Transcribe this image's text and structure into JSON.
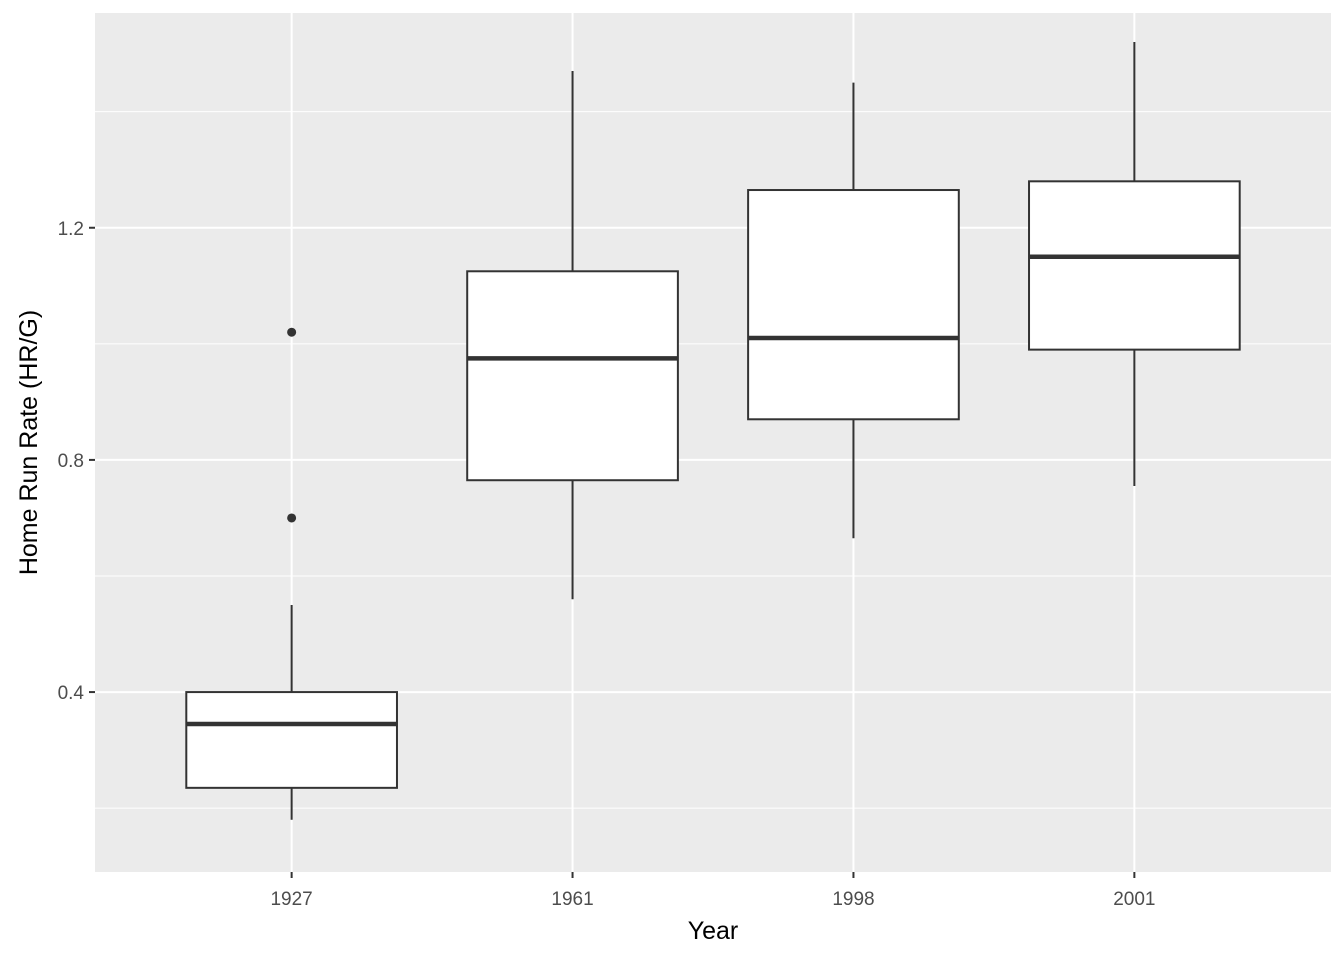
{
  "chart_data": {
    "type": "box",
    "title": "",
    "xlabel": "Year",
    "ylabel": "Home Run Rate (HR/G)",
    "ylim": [
      0.09,
      1.57
    ],
    "y_ticks": [
      0.4,
      0.8,
      1.2
    ],
    "y_tick_labels": [
      "0.4",
      "0.8",
      "1.2"
    ],
    "grid": true,
    "categories": [
      "1927",
      "1961",
      "1998",
      "2001"
    ],
    "boxes": [
      {
        "category": "1927",
        "whisker_low": 0.18,
        "q1": 0.235,
        "median": 0.345,
        "q3": 0.4,
        "whisker_high": 0.55,
        "outliers": [
          0.7,
          1.02
        ]
      },
      {
        "category": "1961",
        "whisker_low": 0.56,
        "q1": 0.765,
        "median": 0.975,
        "q3": 1.125,
        "whisker_high": 1.47,
        "outliers": []
      },
      {
        "category": "1998",
        "whisker_low": 0.665,
        "q1": 0.87,
        "median": 1.01,
        "q3": 1.265,
        "whisker_high": 1.45,
        "outliers": []
      },
      {
        "category": "2001",
        "whisker_low": 0.755,
        "q1": 0.99,
        "median": 1.15,
        "q3": 1.28,
        "whisker_high": 1.52,
        "outliers": []
      }
    ],
    "colors": {
      "panel": "#ebebeb",
      "grid": "#ffffff",
      "box_fill": "#ffffff",
      "box_line": "#333333",
      "tick_text": "#4d4d4d"
    }
  }
}
